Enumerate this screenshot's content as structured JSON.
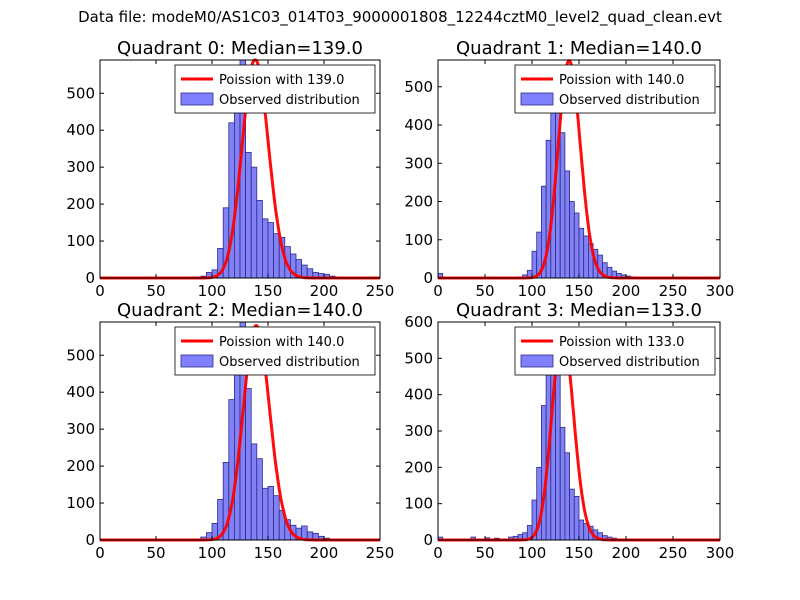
{
  "figure": {
    "suptitle": "Data file: modeM0/AS1C03_014T03_9000001808_12244cztM0_level2_quad_clean.evt"
  },
  "colors": {
    "poisson_line": "#ff0000",
    "bar_fill": "#7b7bf5",
    "bar_edge": "#2b2b8a",
    "legend_bar_fill": "#8080ff"
  },
  "chart_data": [
    {
      "type": "bar",
      "title": "Quadrant 0: Median=139.0",
      "median": 139.0,
      "xlim": [
        0,
        250
      ],
      "ylim": [
        0,
        590
      ],
      "xticks": [
        "0",
        "50",
        "100",
        "150",
        "200",
        "250"
      ],
      "yticks": [
        "0",
        "100",
        "200",
        "300",
        "400",
        "500"
      ],
      "bin_start": 85,
      "bin_width": 5,
      "counts": [
        2,
        5,
        15,
        22,
        80,
        190,
        420,
        480,
        590,
        340,
        300,
        210,
        160,
        150,
        120,
        110,
        85,
        65,
        50,
        35,
        25,
        15,
        12,
        10,
        5,
        3
      ],
      "legend": {
        "line_label": "Poission with 139.0",
        "bar_label": "Observed distribution",
        "placement": "top-right"
      }
    },
    {
      "type": "bar",
      "title": "Quadrant 1: Median=140.0",
      "median": 140.0,
      "xlim": [
        0,
        300
      ],
      "ylim": [
        0,
        570
      ],
      "xticks": [
        "0",
        "50",
        "100",
        "150",
        "200",
        "250",
        "300"
      ],
      "yticks": [
        "0",
        "100",
        "200",
        "300",
        "400",
        "500"
      ],
      "bin_start": 85,
      "bin_width": 5,
      "counts": [
        3,
        8,
        20,
        70,
        120,
        240,
        360,
        500,
        440,
        380,
        280,
        200,
        170,
        130,
        110,
        90,
        75,
        60,
        40,
        28,
        18,
        12,
        8,
        5,
        3,
        2
      ],
      "extra_bar": {
        "x0": 0,
        "count": 12
      },
      "legend": {
        "line_label": "Poission with 140.0",
        "bar_label": "Observed distribution",
        "placement": "top-right"
      }
    },
    {
      "type": "bar",
      "title": "Quadrant 2: Median=140.0",
      "median": 140.0,
      "xlim": [
        0,
        250
      ],
      "ylim": [
        0,
        590
      ],
      "xticks": [
        "0",
        "50",
        "100",
        "150",
        "200",
        "250"
      ],
      "yticks": [
        "0",
        "100",
        "200",
        "300",
        "400",
        "500"
      ],
      "bin_start": 85,
      "bin_width": 5,
      "counts": [
        3,
        8,
        20,
        45,
        110,
        210,
        380,
        480,
        590,
        410,
        260,
        220,
        140,
        145,
        120,
        80,
        55,
        40,
        32,
        38,
        22,
        18,
        10,
        5,
        2,
        1
      ],
      "legend": {
        "line_label": "Poission with 140.0",
        "bar_label": "Observed distribution",
        "placement": "top-right"
      }
    },
    {
      "type": "bar",
      "title": "Quadrant 3: Median=133.0",
      "median": 133.0,
      "xlim": [
        0,
        300
      ],
      "ylim": [
        0,
        600
      ],
      "xticks": [
        "0",
        "50",
        "100",
        "150",
        "200",
        "250",
        "300"
      ],
      "yticks": [
        "0",
        "100",
        "200",
        "300",
        "400",
        "500",
        "600"
      ],
      "bin_start": 85,
      "bin_width": 5,
      "counts": [
        15,
        20,
        40,
        110,
        200,
        370,
        500,
        550,
        480,
        310,
        240,
        140,
        120,
        55,
        45,
        38,
        28,
        20,
        12,
        8,
        5,
        3,
        2,
        2,
        1,
        1
      ],
      "scatter_bins": [
        [
          0,
          8
        ],
        [
          35,
          8
        ],
        [
          50,
          6
        ],
        [
          60,
          5
        ],
        [
          75,
          8
        ],
        [
          80,
          10
        ]
      ],
      "legend": {
        "line_label": "Poission with 133.0",
        "bar_label": "Observed distribution",
        "placement": "top-right"
      }
    }
  ]
}
